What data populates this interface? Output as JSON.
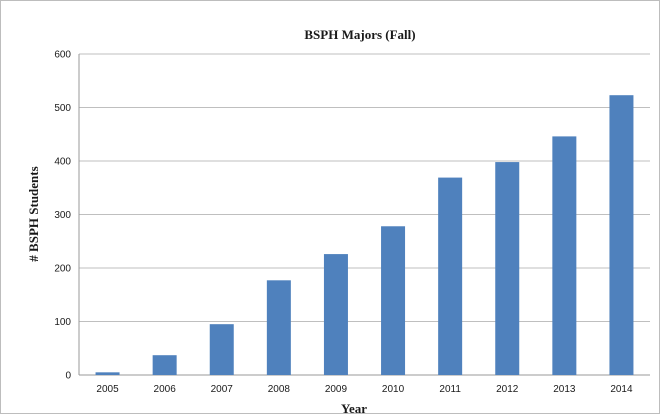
{
  "chart_data": {
    "type": "bar",
    "title": "BSPH Majors (Fall)",
    "xlabel": "Year",
    "ylabel": "# BSPH Students",
    "categories": [
      "2005",
      "2006",
      "2007",
      "2008",
      "2009",
      "2010",
      "2011",
      "2012",
      "2013",
      "2014"
    ],
    "values": [
      5,
      37,
      95,
      177,
      226,
      278,
      369,
      398,
      446,
      523
    ],
    "ylim": [
      0,
      600
    ],
    "yticks": [
      "0",
      "100",
      "200",
      "300",
      "400",
      "500",
      "600"
    ],
    "grid": true,
    "legend": "none",
    "bar_color": "#4f81bd"
  }
}
